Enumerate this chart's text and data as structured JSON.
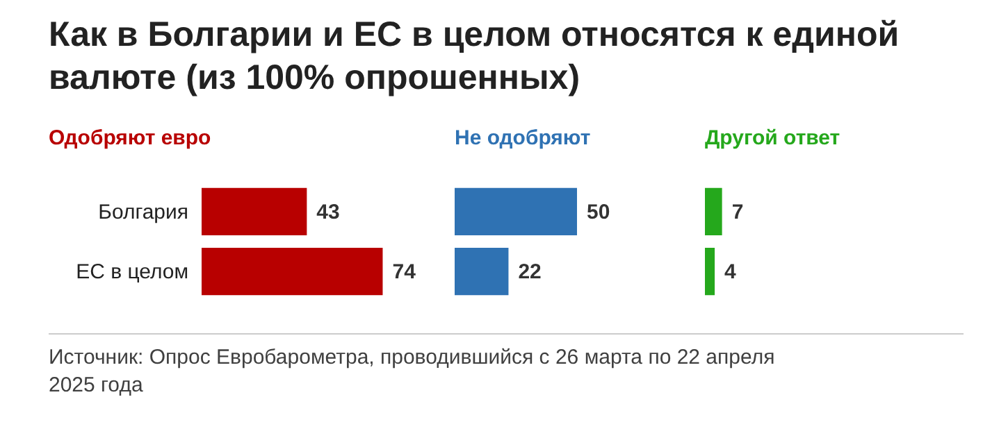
{
  "chart_data": [
    {
      "type": "bar",
      "orientation": "horizontal",
      "title": "Как в Болгарии и ЕС в целом относятся к единой валюте (из 100% опрошенных)",
      "subtitle": "Одобряют евро",
      "categories": [
        "Болгария",
        "ЕС в целом"
      ],
      "values": [
        43,
        74
      ],
      "color": "#b80000",
      "data_labels": true,
      "annotations": [
        "Источник: Опрос Евробарометра, проводившийся с 26 марта по 22 апреля 2025 года"
      ]
    },
    {
      "type": "bar",
      "orientation": "horizontal",
      "title": "Не одобряют",
      "categories": [
        null,
        null
      ],
      "values": [
        50,
        22
      ],
      "color": "#2f72b3",
      "data_labels": true
    },
    {
      "type": "bar",
      "orientation": "horizontal",
      "title": "Другой ответ",
      "categories": [
        null,
        null
      ],
      "values": [
        7,
        4
      ],
      "color": "#25a81c",
      "data_labels": true
    }
  ]
}
